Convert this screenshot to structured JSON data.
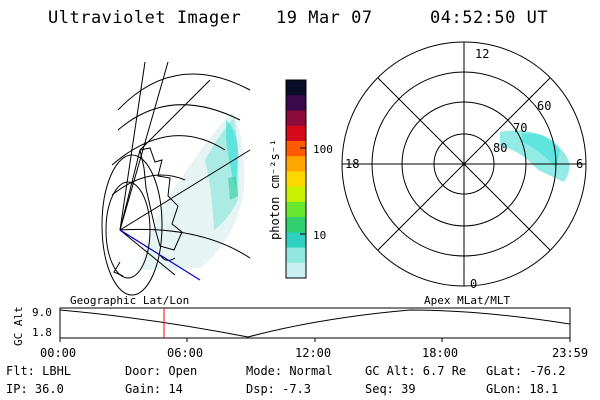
{
  "header": {
    "title": "Ultraviolet Imager",
    "date": "19 Mar 07",
    "time": "04:52:50 UT"
  },
  "colorbar": {
    "unit_label": "photon cm⁻²s⁻¹",
    "ticks": [
      "100",
      "10"
    ],
    "colors": [
      "#0b0b2a",
      "#3a0a4a",
      "#8b0a3a",
      "#d40a1a",
      "#ff5a00",
      "#ffa500",
      "#ffd800",
      "#c8f000",
      "#66e830",
      "#30d070",
      "#30d0c0",
      "#90e8e0",
      "#c8f0f0"
    ]
  },
  "polar_plot": {
    "mlt_labels": {
      "top": "12",
      "left": "18",
      "right": "6",
      "bottom": "0"
    },
    "lat_labels": [
      "60",
      "70",
      "80"
    ]
  },
  "timeline": {
    "ylabel": "GC Alt",
    "left_title": "Geographic Lat/Lon",
    "right_title": "Apex MLat/MLT",
    "y_ticks": [
      "9.0",
      "1.8"
    ],
    "x_ticks": [
      "00:00",
      "06:00",
      "12:00",
      "18:00",
      "23:59"
    ],
    "current_time_marker": "04:52"
  },
  "info": {
    "flt": "Flt: LBHL",
    "ip": "IP: 36.0",
    "door": "Door: Open",
    "gain": "Gain: 14",
    "mode": "Mode: Normal",
    "dsp": "Dsp:   -7.3",
    "gc_alt": "GC Alt: 6.7 Re",
    "seq": "Seq: 39",
    "glat": "GLat: -76.2",
    "glon": "GLon:  18.1"
  },
  "accent_colors": {
    "marker": "#ff0000",
    "aurora": "#40e0d8",
    "nav_line": "#0000cc"
  }
}
